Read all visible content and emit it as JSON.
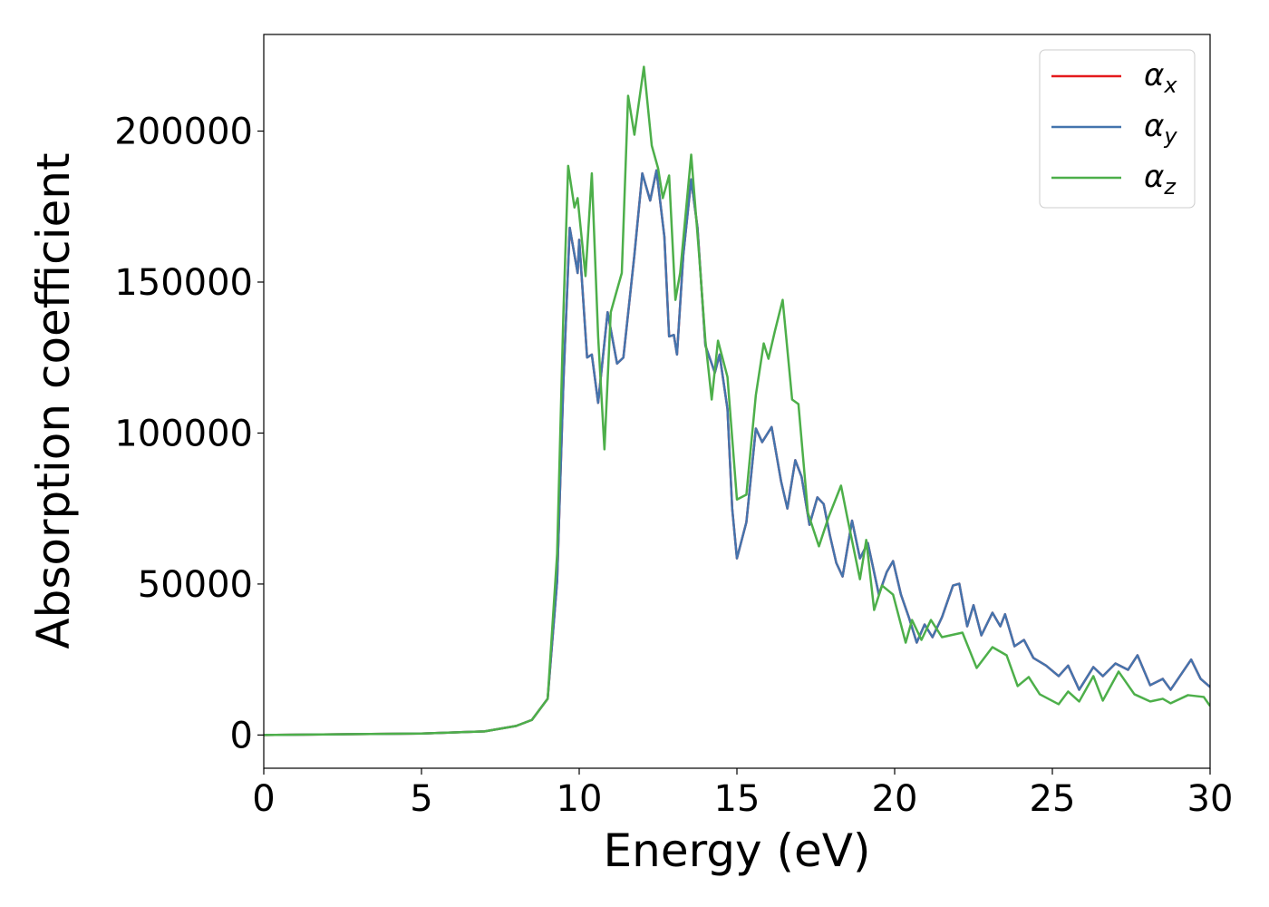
{
  "chart_data": {
    "type": "line",
    "x_label": "Energy (eV)",
    "y_label": "Absorption coefficient",
    "xlim": [
      0,
      30
    ],
    "ylim": [
      -11000,
      232000
    ],
    "xticks": [
      0,
      5,
      10,
      15,
      20,
      25,
      30
    ],
    "yticks": [
      0,
      50000,
      100000,
      150000,
      200000
    ],
    "legend": "upper right",
    "grid": false,
    "series": [
      {
        "name": "αx",
        "color": "#e41a1c",
        "x": [
          0,
          5,
          7,
          8,
          8.5,
          9,
          9.3,
          9.5,
          9.7,
          9.95,
          10,
          10.25,
          10.4,
          10.6,
          10.9,
          11.2,
          11.4,
          11.75,
          12,
          12.25,
          12.45,
          12.7,
          12.85,
          13,
          13.1,
          13.3,
          13.55,
          13.75,
          14,
          14.3,
          14.45,
          14.7,
          14.85,
          15,
          15.3,
          15.6,
          15.8,
          16.1,
          16.4,
          16.6,
          16.85,
          17.05,
          17.3,
          17.55,
          17.75,
          17.95,
          18.15,
          18.35,
          18.65,
          18.9,
          19.15,
          19.5,
          19.75,
          19.95,
          20.2,
          20.45,
          20.7,
          20.95,
          21.2,
          21.5,
          21.85,
          22.05,
          22.3,
          22.5,
          22.75,
          23.1,
          23.35,
          23.5,
          23.8,
          24.1,
          24.4,
          24.8,
          25.2,
          25.5,
          25.85,
          26.3,
          26.6,
          27,
          27.4,
          27.7,
          28.1,
          28.5,
          28.75,
          29.4,
          29.7,
          30
        ],
        "values": [
          0,
          500,
          1200,
          3000,
          5000,
          12000,
          51000,
          117000,
          168000,
          153000,
          164000,
          125000,
          126000,
          110000,
          140000,
          123000,
          125000,
          159000,
          186000,
          177000,
          187000,
          165000,
          132000,
          132500,
          126000,
          159000,
          184000,
          168000,
          129000,
          120000,
          126000,
          108000,
          75000,
          58500,
          70500,
          101500,
          97000,
          102000,
          84000,
          75000,
          91000,
          85500,
          69600,
          78700,
          76500,
          66000,
          57000,
          52500,
          71000,
          58500,
          63600,
          46500,
          54000,
          57600,
          46500,
          39000,
          30600,
          36600,
          32400,
          39000,
          49500,
          50100,
          36000,
          43000,
          33000,
          40500,
          36000,
          40000,
          29400,
          31500,
          25500,
          23000,
          19500,
          23000,
          15000,
          22500,
          19500,
          23700,
          21600,
          26400,
          16500,
          18600,
          15000,
          25000,
          18600,
          15900
        ]
      },
      {
        "name": "αy",
        "color": "#4474ad",
        "x": [
          0,
          5,
          7,
          8,
          8.5,
          9,
          9.3,
          9.5,
          9.7,
          9.95,
          10,
          10.25,
          10.4,
          10.6,
          10.9,
          11.2,
          11.4,
          11.75,
          12,
          12.25,
          12.45,
          12.7,
          12.85,
          13,
          13.1,
          13.3,
          13.55,
          13.75,
          14,
          14.3,
          14.45,
          14.7,
          14.85,
          15,
          15.3,
          15.6,
          15.8,
          16.1,
          16.4,
          16.6,
          16.85,
          17.05,
          17.3,
          17.55,
          17.75,
          17.95,
          18.15,
          18.35,
          18.65,
          18.9,
          19.15,
          19.5,
          19.75,
          19.95,
          20.2,
          20.45,
          20.7,
          20.95,
          21.2,
          21.5,
          21.85,
          22.05,
          22.3,
          22.5,
          22.75,
          23.1,
          23.35,
          23.5,
          23.8,
          24.1,
          24.4,
          24.8,
          25.2,
          25.5,
          25.85,
          26.3,
          26.6,
          27,
          27.4,
          27.7,
          28.1,
          28.5,
          28.75,
          29.4,
          29.7,
          30
        ],
        "values": [
          0,
          500,
          1200,
          3000,
          5000,
          12000,
          51000,
          117000,
          168000,
          153000,
          164000,
          125000,
          126000,
          110000,
          140000,
          123000,
          125000,
          159000,
          186000,
          177000,
          187000,
          165000,
          132000,
          132500,
          126000,
          159000,
          184000,
          168000,
          129000,
          120000,
          126000,
          108000,
          75000,
          58500,
          70500,
          101500,
          97000,
          102000,
          84000,
          75000,
          91000,
          85500,
          69600,
          78700,
          76500,
          66000,
          57000,
          52500,
          71000,
          58500,
          63600,
          46500,
          54000,
          57600,
          46500,
          39000,
          30600,
          36600,
          32400,
          39000,
          49500,
          50100,
          36000,
          43000,
          33000,
          40500,
          36000,
          40000,
          29400,
          31500,
          25500,
          23000,
          19500,
          23000,
          15000,
          22500,
          19500,
          23700,
          21600,
          26400,
          16500,
          18600,
          15000,
          25000,
          18600,
          15900
        ]
      },
      {
        "name": "αz",
        "color": "#4daf4a",
        "x": [
          0,
          5,
          7,
          8,
          8.5,
          9,
          9.3,
          9.5,
          9.65,
          9.85,
          9.95,
          10.2,
          10.4,
          10.6,
          10.8,
          11,
          11.15,
          11.35,
          11.55,
          11.75,
          12.05,
          12.3,
          12.5,
          12.65,
          12.85,
          13.05,
          13.2,
          13.55,
          13.8,
          14,
          14.2,
          14.4,
          14.7,
          15,
          15.3,
          15.6,
          15.85,
          16,
          16.2,
          16.45,
          16.75,
          16.95,
          17.25,
          17.6,
          17.9,
          18.3,
          18.5,
          18.9,
          19.1,
          19.35,
          19.6,
          19.95,
          20.35,
          20.55,
          20.85,
          21.15,
          21.5,
          22.15,
          22.6,
          23.1,
          23.55,
          23.9,
          24.25,
          24.6,
          25.2,
          25.5,
          25.85,
          26.3,
          26.6,
          27.1,
          27.6,
          28.1,
          28.5,
          28.75,
          29.3,
          29.8,
          30
        ],
        "values": [
          0,
          500,
          1200,
          3000,
          5000,
          12000,
          60000,
          140000,
          188500,
          174700,
          177800,
          152000,
          186000,
          132000,
          94600,
          140000,
          145600,
          153000,
          211700,
          198800,
          221300,
          195200,
          187700,
          177800,
          185300,
          144100,
          153000,
          192200,
          159200,
          130600,
          111100,
          130600,
          118600,
          78000,
          79600,
          112600,
          129700,
          124600,
          133600,
          144100,
          111100,
          109600,
          73600,
          62500,
          72000,
          82600,
          72000,
          51600,
          64600,
          41400,
          49500,
          46500,
          30600,
          38100,
          31500,
          38100,
          32400,
          33900,
          22200,
          29100,
          26400,
          16200,
          19200,
          13500,
          10200,
          14400,
          11100,
          19500,
          11400,
          21000,
          13500,
          11100,
          12000,
          10500,
          13200,
          12600,
          9600
        ]
      }
    ]
  }
}
